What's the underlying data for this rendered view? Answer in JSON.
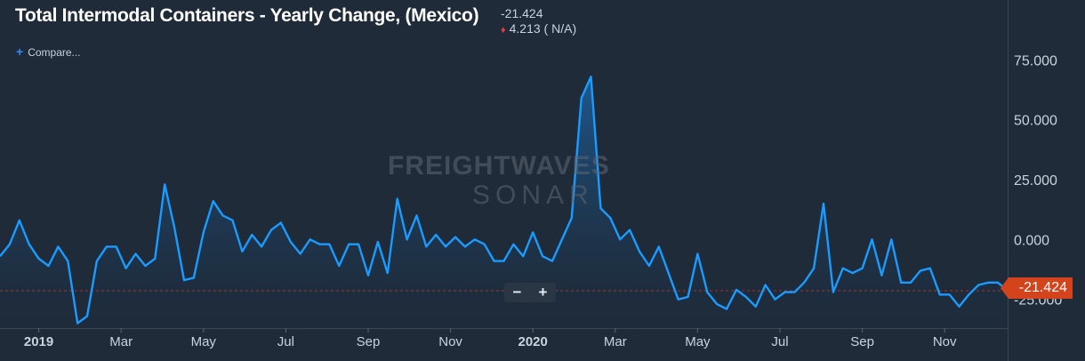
{
  "header": {
    "title": "Total Intermodal Containers - Yearly Change, (Mexico)",
    "last_value": "-21.424",
    "change": "4.213 ( N/A)",
    "compare_label": "Compare..."
  },
  "controls": {
    "zoom_out": "−",
    "zoom_in": "+"
  },
  "watermark": {
    "line1": "FREIGHTWAVES",
    "line2": "SONAR"
  },
  "colors": {
    "line": "#1a9bff",
    "fill_top": "#1f5c95",
    "background": "#1f2b39",
    "last_tag": "#d4441c",
    "down_marker": "#e03c3c"
  },
  "last_value_tag": "-21.424",
  "chart_data": {
    "type": "area",
    "title": "Total Intermodal Containers - Yearly Change, (Mexico)",
    "ylim": [
      -37,
      100
    ],
    "y_ticks": [
      75,
      50,
      25,
      0,
      -25
    ],
    "y_tick_labels": [
      "75.000",
      "50.000",
      "25.000",
      "0.000",
      "-25.000"
    ],
    "x_ticks": [
      {
        "label": "2019",
        "x": 4,
        "bold": true
      },
      {
        "label": "Mar",
        "x": 12.5
      },
      {
        "label": "May",
        "x": 21
      },
      {
        "label": "Jul",
        "x": 29.5
      },
      {
        "label": "Sep",
        "x": 38
      },
      {
        "label": "Nov",
        "x": 46.5
      },
      {
        "label": "2020",
        "x": 55,
        "bold": true
      },
      {
        "label": "Mar",
        "x": 63.5
      },
      {
        "label": "May",
        "x": 72
      },
      {
        "label": "Jul",
        "x": 80.5
      },
      {
        "label": "Sep",
        "x": 89
      },
      {
        "label": "Nov",
        "x": 97.5
      }
    ],
    "reference_line": -21.424,
    "series": [
      {
        "values": [
          -7,
          -2,
          8,
          -2,
          -8,
          -11,
          -3,
          -9,
          -35,
          -32,
          -9,
          -3,
          -3,
          -12,
          -6,
          -11,
          -8,
          23,
          5,
          -17,
          -16,
          3,
          16,
          10,
          8,
          -5,
          2,
          -3,
          4,
          7,
          -1,
          -6,
          0,
          -2,
          -2,
          -11,
          -2,
          -2,
          -15,
          -1,
          -14,
          17,
          0,
          10,
          -3,
          2,
          -3,
          1,
          -3,
          0,
          -2,
          -9,
          -9,
          -2,
          -7,
          3,
          -7,
          -9,
          0,
          9,
          59,
          68,
          13,
          9,
          0,
          4,
          -5,
          -11,
          -3,
          -14,
          -25,
          -24,
          -6,
          -22,
          -27,
          -29,
          -21,
          -24,
          -28,
          -19,
          -25,
          -22,
          -22,
          -18,
          -12,
          15,
          -22,
          -12,
          -14,
          -12,
          0,
          -15,
          0,
          -18,
          -18,
          -13,
          -12,
          -23,
          -23,
          -28,
          -23,
          -19,
          -18,
          -18,
          -21.424
        ]
      }
    ]
  }
}
